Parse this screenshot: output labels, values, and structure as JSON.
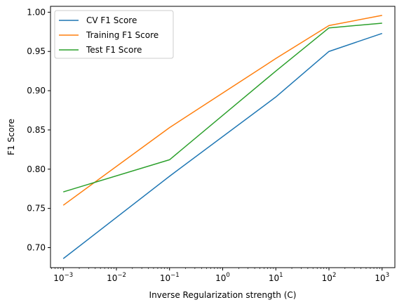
{
  "chart_data": {
    "type": "line",
    "xscale": "log",
    "x": [
      0.001,
      0.1,
      10,
      100,
      1000
    ],
    "xticks": [
      {
        "value": 0.001,
        "base": "10",
        "exp": "−3"
      },
      {
        "value": 0.01,
        "base": "10",
        "exp": "−2"
      },
      {
        "value": 0.1,
        "base": "10",
        "exp": "−1"
      },
      {
        "value": 1,
        "base": "10",
        "exp": "0"
      },
      {
        "value": 10,
        "base": "10",
        "exp": "1"
      },
      {
        "value": 100,
        "base": "10",
        "exp": "2"
      },
      {
        "value": 1000,
        "base": "10",
        "exp": "3"
      }
    ],
    "yticks": [
      0.7,
      0.75,
      0.8,
      0.85,
      0.9,
      0.95,
      1.0
    ],
    "ytick_labels": [
      "0.70",
      "0.75",
      "0.80",
      "0.85",
      "0.90",
      "0.95",
      "1.00"
    ],
    "xlim": [
      0.000575,
      1740
    ],
    "ylim": [
      0.6745,
      1.0075
    ],
    "xlabel": "Inverse Regularization strength (C)",
    "ylabel": "F1 Score",
    "grid": false,
    "legend_position": "upper-left",
    "series": [
      {
        "name": "CV F1 Score",
        "color": "#1f77b4",
        "values": [
          0.686,
          0.791,
          0.892,
          0.95,
          0.973
        ]
      },
      {
        "name": "Training F1 Score",
        "color": "#ff7f0e",
        "values": [
          0.754,
          0.853,
          0.941,
          0.983,
          0.996
        ]
      },
      {
        "name": "Test F1 Score",
        "color": "#2ca02c",
        "values": [
          0.771,
          0.812,
          0.925,
          0.98,
          0.986
        ]
      }
    ]
  }
}
